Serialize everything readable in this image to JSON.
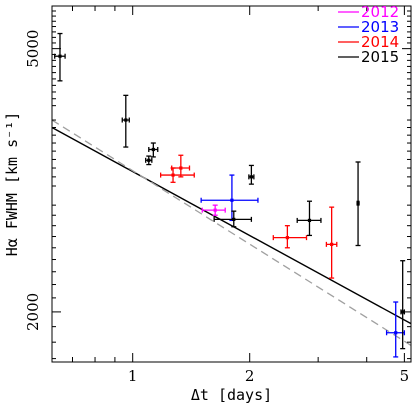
{
  "chart_data": {
    "type": "scatter",
    "x_scale": "log",
    "y_scale": "log",
    "xlabel": "Δt [days]",
    "ylabel": "Hα FWHM [km s⁻¹]",
    "xlim": [
      0.62,
      5.2
    ],
    "ylim": [
      1680,
      5800
    ],
    "x_ticks": [
      1,
      2,
      5
    ],
    "x_tick_labels": [
      "1",
      "2",
      "5"
    ],
    "y_ticks": [
      2000,
      5000
    ],
    "y_tick_labels": [
      "2000",
      "5000"
    ],
    "legend": {
      "position": "top-right"
    },
    "series": [
      {
        "name": "2012",
        "color": "#ff00ff",
        "points": [
          {
            "x": 1.63,
            "y": 2850,
            "xerr": [
              0.12,
              0.1
            ],
            "yerr": [
              50,
              50
            ]
          }
        ]
      },
      {
        "name": "2013",
        "color": "#0000ff",
        "points": [
          {
            "x": 1.8,
            "y": 2950,
            "xerr": [
              0.3,
              0.3
            ],
            "yerr": [
              200,
              270
            ]
          },
          {
            "x": 4.75,
            "y": 1860,
            "xerr": [
              0.25,
              0.25
            ],
            "yerr": [
              150,
              210
            ]
          }
        ]
      },
      {
        "name": "2014",
        "color": "#ff0000",
        "points": [
          {
            "x": 1.27,
            "y": 3220,
            "xerr": [
              0.09,
              0.17
            ],
            "yerr": [
              80,
              80
            ]
          },
          {
            "x": 1.33,
            "y": 3300,
            "xerr": [
              0.07,
              0.07
            ],
            "yerr": [
              100,
              150
            ]
          },
          {
            "x": 2.5,
            "y": 2590,
            "xerr": [
              0.2,
              0.3
            ],
            "yerr": [
              90,
              110
            ]
          },
          {
            "x": 3.25,
            "y": 2530,
            "xerr": [
              0.1,
              0.1
            ],
            "yerr": [
              280,
              350
            ]
          }
        ]
      },
      {
        "name": "2015",
        "color": "#000000",
        "points": [
          {
            "x": 0.65,
            "y": 4870,
            "xerr": [
              0.02,
              0.02
            ],
            "yerr": [
              400,
              400
            ]
          },
          {
            "x": 0.96,
            "y": 3900,
            "xerr": [
              0.02,
              0.02
            ],
            "yerr": [
              350,
              350
            ]
          },
          {
            "x": 1.13,
            "y": 3520,
            "xerr": [
              0.03,
              0.03
            ],
            "yerr": [
              90,
              80
            ]
          },
          {
            "x": 1.1,
            "y": 3390,
            "xerr": [
              0.02,
              0.02
            ],
            "yerr": [
              50,
              50
            ]
          },
          {
            "x": 1.82,
            "y": 2760,
            "xerr": [
              0.2,
              0.2
            ],
            "yerr": [
              70,
              80
            ]
          },
          {
            "x": 2.02,
            "y": 3200,
            "xerr": [
              0.03,
              0.03
            ],
            "yerr": [
              80,
              130
            ]
          },
          {
            "x": 2.85,
            "y": 2750,
            "xerr": [
              0.2,
              0.2
            ],
            "yerr": [
              140,
              190
            ]
          },
          {
            "x": 3.8,
            "y": 2920,
            "xerr": [
              0.02,
              0.02
            ],
            "yerr": [
              400,
              450
            ]
          },
          {
            "x": 4.95,
            "y": 2000,
            "xerr": [
              0.05,
              0.05
            ],
            "yerr": [
              240,
              390
            ]
          }
        ]
      }
    ],
    "fit_lines": [
      {
        "style": "solid",
        "color": "#000000",
        "x": [
          0.62,
          5.2
        ],
        "y": [
          3800,
          1920
        ]
      },
      {
        "style": "dashed",
        "color": "#a0a0a0",
        "x": [
          0.62,
          5.2
        ],
        "y": [
          3900,
          1780
        ]
      }
    ]
  }
}
